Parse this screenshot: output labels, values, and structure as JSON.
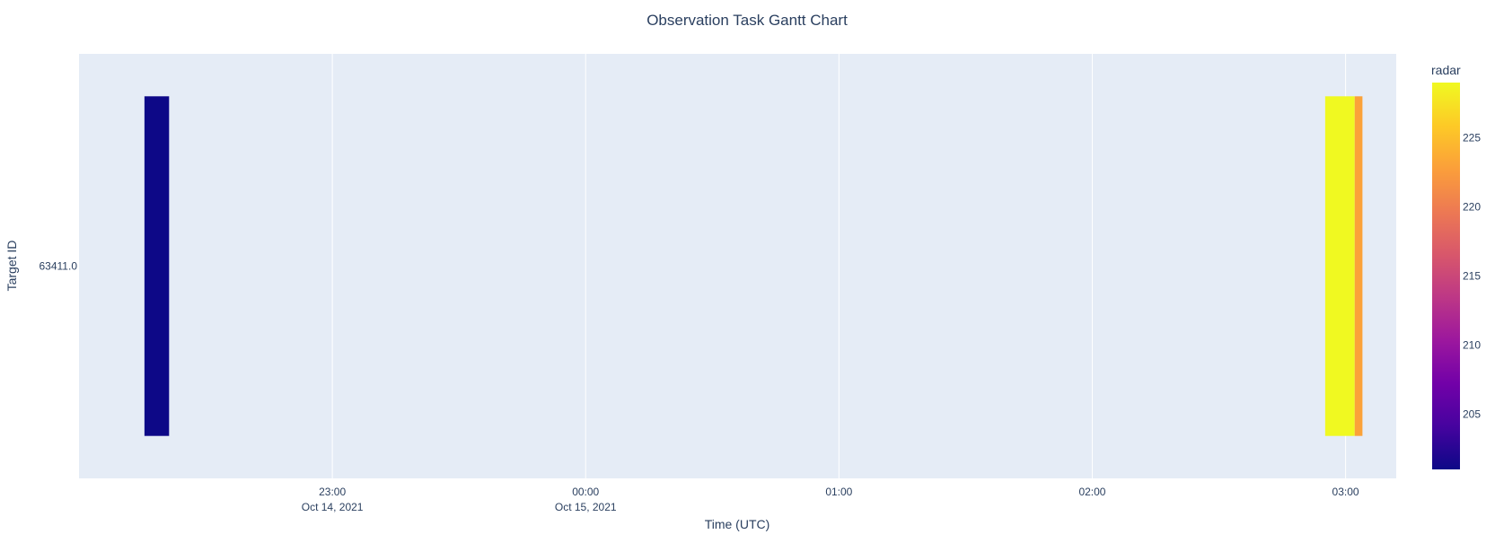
{
  "chart_data": {
    "type": "gantt",
    "title": "Observation Task Gantt Chart",
    "xlabel": "Time (UTC)",
    "ylabel": "Target ID",
    "x_range": [
      "2021-10-14T22:00:00",
      "2021-10-15T03:12:00"
    ],
    "x_ticks": [
      {
        "time": "2021-10-14T23:00:00",
        "label": "23:00",
        "sublabel": "Oct 14, 2021"
      },
      {
        "time": "2021-10-15T00:00:00",
        "label": "00:00",
        "sublabel": "Oct 15, 2021"
      },
      {
        "time": "2021-10-15T01:00:00",
        "label": "01:00",
        "sublabel": ""
      },
      {
        "time": "2021-10-15T02:00:00",
        "label": "02:00",
        "sublabel": ""
      },
      {
        "time": "2021-10-15T03:00:00",
        "label": "03:00",
        "sublabel": ""
      }
    ],
    "categories": [
      "63411.0"
    ],
    "tasks": [
      {
        "target": "63411.0",
        "start": "2021-10-14T22:15:30",
        "end": "2021-10-14T22:21:20",
        "radar": 201
      },
      {
        "target": "63411.0",
        "start": "2021-10-15T02:55:10",
        "end": "2021-10-15T03:02:10",
        "radar": 229
      },
      {
        "target": "63411.0",
        "start": "2021-10-15T03:02:10",
        "end": "2021-10-15T03:04:00",
        "radar": 223
      }
    ],
    "colorbar": {
      "title": "radar",
      "min": 201,
      "max": 229,
      "ticks": [
        205,
        210,
        215,
        220,
        225
      ],
      "colorscale": [
        "#0d0887",
        "#46039f",
        "#7201a8",
        "#9c179e",
        "#bd3786",
        "#d8576b",
        "#ed7953",
        "#fb9f3a",
        "#fdca26",
        "#f0f921"
      ]
    },
    "grid": true,
    "plot_bgcolor": "#e5ecf6"
  }
}
